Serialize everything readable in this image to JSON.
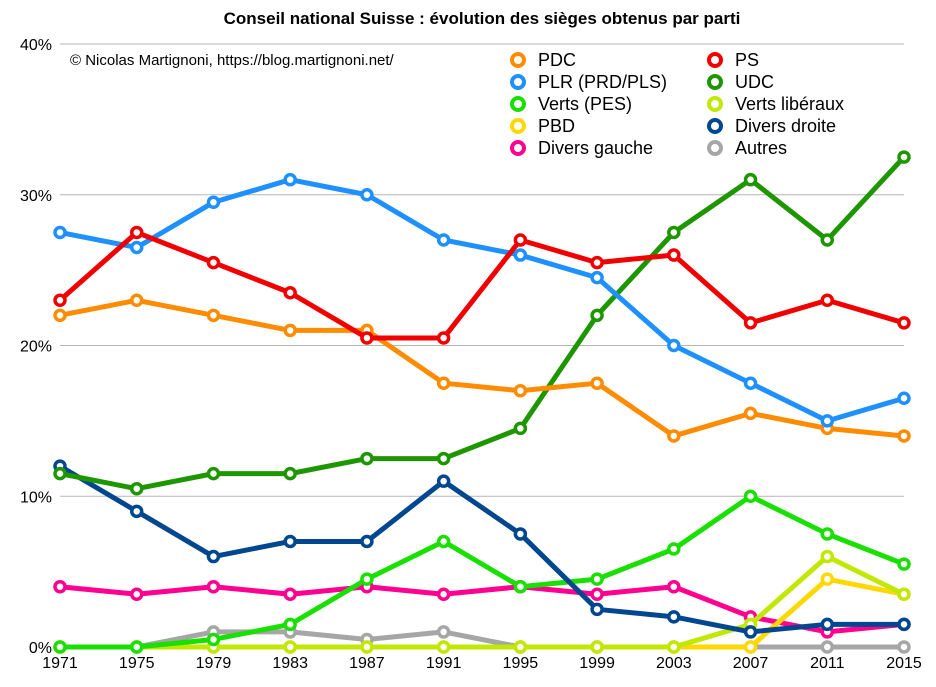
{
  "chart_data": {
    "type": "line",
    "title": "Conseil national Suisse : évolution des sièges obtenus par parti",
    "credit": "© Nicolas Martignoni, https://blog.martignoni.net/",
    "xlabel": "",
    "ylabel": "",
    "x": [
      1971,
      1975,
      1979,
      1983,
      1987,
      1991,
      1995,
      1999,
      2003,
      2007,
      2011,
      2015
    ],
    "x_tick_labels": [
      "1971",
      "1975",
      "1979",
      "1983",
      "1987",
      "1991",
      "1995",
      "1999",
      "2003",
      "2007",
      "2011",
      "2015"
    ],
    "ylim": [
      0,
      40
    ],
    "y_ticks": [
      0,
      10,
      20,
      30,
      40
    ],
    "y_tick_labels": [
      "0%",
      "10%",
      "20%",
      "30%",
      "40%"
    ],
    "grid": true,
    "legend_position": "top-right",
    "series": [
      {
        "name": "Autres",
        "color": "#a6a6a6",
        "values": [
          0,
          0,
          1,
          1,
          0.5,
          1,
          0,
          0,
          0,
          0,
          0,
          0
        ]
      },
      {
        "name": "Divers gauche",
        "color": "#ff0090",
        "values": [
          4,
          3.5,
          4,
          3.5,
          4,
          3.5,
          4,
          3.5,
          4,
          2,
          1,
          1.5
        ]
      },
      {
        "name": "PBD",
        "color": "#ffd800",
        "values": [
          0,
          0,
          0,
          0,
          0,
          0,
          0,
          0,
          0,
          0,
          4.5,
          3.5
        ]
      },
      {
        "name": "Verts libéraux",
        "color": "#c0e800",
        "values": [
          0,
          0,
          0,
          0,
          0,
          0,
          0,
          0,
          0,
          1.5,
          6,
          3.5
        ]
      },
      {
        "name": "Verts (PES)",
        "color": "#19e000",
        "values": [
          0,
          0,
          0.5,
          1.5,
          4.5,
          7,
          4,
          4.5,
          6.5,
          10,
          7.5,
          5.5
        ]
      },
      {
        "name": "Divers droite",
        "color": "#00478f",
        "values": [
          12,
          9,
          6,
          7,
          7,
          11,
          7.5,
          2.5,
          2,
          1,
          1.5,
          1.5
        ]
      },
      {
        "name": "UDC",
        "color": "#1e9600",
        "values": [
          11.5,
          10.5,
          11.5,
          11.5,
          12.5,
          12.5,
          14.5,
          22,
          27.5,
          31,
          27,
          32.5
        ]
      },
      {
        "name": "PDC",
        "color": "#ff8c00",
        "values": [
          22,
          23,
          22,
          21,
          21,
          17.5,
          17,
          17.5,
          14,
          15.5,
          14.5,
          14
        ]
      },
      {
        "name": "PLR (PRD/PLS)",
        "color": "#1e90ff",
        "values": [
          27.5,
          26.5,
          29.5,
          31,
          30,
          27,
          26,
          24.5,
          20,
          17.5,
          15,
          16.5
        ]
      },
      {
        "name": "PS",
        "color": "#f00000",
        "values": [
          23,
          27.5,
          25.5,
          23.5,
          20.5,
          20.5,
          27,
          25.5,
          26,
          21.5,
          23,
          21.5
        ]
      }
    ],
    "legend": [
      {
        "name": "PDC",
        "color": "#ff8c00"
      },
      {
        "name": "PS",
        "color": "#f00000"
      },
      {
        "name": "PLR (PRD/PLS)",
        "color": "#1e90ff"
      },
      {
        "name": "UDC",
        "color": "#1e9600"
      },
      {
        "name": "Verts (PES)",
        "color": "#19e000"
      },
      {
        "name": "Verts libéraux",
        "color": "#c0e800"
      },
      {
        "name": "PBD",
        "color": "#ffd800"
      },
      {
        "name": "Divers droite",
        "color": "#00478f"
      },
      {
        "name": "Divers gauche",
        "color": "#ff0090"
      },
      {
        "name": "Autres",
        "color": "#a6a6a6"
      }
    ]
  }
}
